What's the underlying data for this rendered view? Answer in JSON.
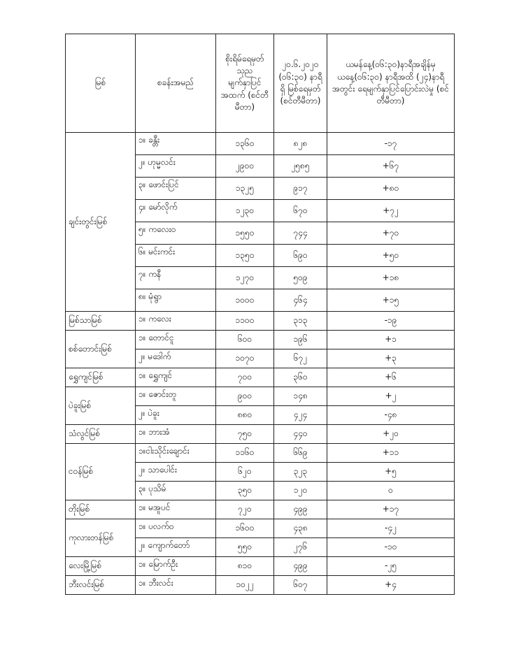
{
  "headers": [
    "မြစ်",
    "စခန်းအမည်",
    "စိုးရိမ်ရေမှတ် သုည မျက်နှာပြင် အထက် (စင်တီမီတာ)",
    "၂၀.၆.၂၀၂၀ (၀၆:၃၀) နာရီရှိ မြစ်ရေမှတ် (စင်တီမီတာ)",
    "ယမန်နေ့(၀၆:၃၀)နာရီအချိန်မှ ယနေ့(၀၆:၃၀) နာရီအထိ (၂၄)နာရီအတွင်း ရေမျက်နှာပြင်ပြောင်းလဲမှု (စင်တီမီတာ)"
  ],
  "rivers": [
    {
      "name": "ချင်းတွင်းမြစ်",
      "stations": [
        [
          "၁။ ခန္တီး",
          "၁၃၆၀",
          "၈၂၈",
          "-၁၇"
        ],
        [
          "၂။ ဟုမ္မလင်း",
          "၂၉၀၀",
          "၂၅၈၅",
          "+၆၇"
        ],
        [
          "၃။ ဖောင်းပြင်",
          "၁၃၂၅",
          "၉၁၇",
          "+၈၀"
        ],
        [
          "၄။ မော်လိုက်",
          "၁၂၃၀",
          "၆၇၀",
          "+၇၂"
        ],
        [
          "၅။ ကလေးဝ",
          "၁၅၅၀",
          "၇၄၄",
          "+၇၀"
        ],
        [
          "၆။ မင်းကင်း",
          "၁၃၅၀",
          "၆၉၀",
          "+၅၀"
        ],
        [
          "၇။ ကနီ",
          "၁၂၇၀",
          "၅၀၉",
          "+၁၈"
        ],
        [
          "၈။ မုံရွာ",
          "၁၀၀၀",
          "၄၆၄",
          "+၁၅"
        ]
      ]
    },
    {
      "name": "မြစ်သာမြစ်",
      "stations": [
        [
          "၁။ ကလေး",
          "၁၁၀၀",
          "၃၁၃",
          "-၁၉"
        ]
      ]
    },
    {
      "name": "စစ်တောင်းမြစ်",
      "stations": [
        [
          "၁။ တောင်ငူ",
          "၆၀၀",
          "၁၉၆",
          "+၁"
        ],
        [
          "၂။ မဒေါက်",
          "၁၀၇၀",
          "၆၇၂",
          "+၃"
        ]
      ]
    },
    {
      "name": "ရွှေကျင်မြစ်",
      "stations": [
        [
          "၁။ ရွှေကျင်",
          "၇၀၀",
          "၃၆၀",
          "+၆"
        ]
      ]
    },
    {
      "name": "ပဲခူးမြစ်",
      "stations": [
        [
          "၁။ ဇောင်းတူ",
          "၉၀၀",
          "၁၄၈",
          "+၂"
        ],
        [
          "၂။ ပဲခူး",
          "၈၈၀",
          "၄၂၄",
          "-၄၈"
        ]
      ]
    },
    {
      "name": "သံလွင်မြစ်",
      "stations": [
        [
          "၁။ ဘားအံ",
          "၇၅၀",
          "၄၄၀",
          "+၂၀"
        ]
      ]
    },
    {
      "name": "ငဝန်မြစ်",
      "stations": [
        [
          "၁။ငါးသိုင်းချောင်း",
          "၁၁၆၀",
          "၆၆၉",
          "+၁၁"
        ],
        [
          "၂။ သာပေါင်း",
          "၆၂၀",
          "၃၂၃",
          "+၅"
        ],
        [
          "၃။ ပုသိမ်",
          "၃၅၀",
          "၁၂၀",
          "၀"
        ]
      ]
    },
    {
      "name": "တိုးမြစ်",
      "stations": [
        [
          "၁။ မအူပင်",
          "၇၂၀",
          "၄၉၉",
          "+၁၇"
        ]
      ]
    },
    {
      "name": "ကုလားတန်မြစ်",
      "stations": [
        [
          "၁။ ပလက်ဝ",
          "၁၆၀၀",
          "၄၃၈",
          "-၄၂"
        ],
        [
          "၂။ ကျောက်တော်",
          "၅၅၀",
          "၂၇၆",
          "-၁၀"
        ]
      ]
    },
    {
      "name": "လေးမြို့မြစ်",
      "stations": [
        [
          "၁။ မြောက်ဦး",
          "၈၁၀",
          "၄၉၉",
          "-၂၅"
        ]
      ]
    },
    {
      "name": "ဘီးလင်းမြစ်",
      "stations": [
        [
          "၁။ ဘီးလင်း",
          "၁၀၂၂",
          "၆၀၇",
          "+၄"
        ]
      ]
    }
  ]
}
